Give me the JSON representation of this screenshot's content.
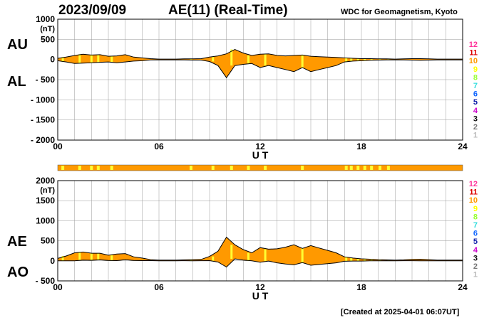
{
  "header": {
    "date": "2023/09/09",
    "title": "AE(11) (Real-Time)",
    "organization": "WDC for Geomagnetism, Kyoto"
  },
  "footer": {
    "created": "[Created at 2025-04-01 06:07UT]"
  },
  "colors": {
    "fill": "#ff9900",
    "highlight": "#ffff33",
    "line": "#000000",
    "grid": "#999999"
  },
  "station_scale": {
    "labels": [
      "12",
      "11",
      "10",
      "9",
      "8",
      "7",
      "6",
      "5",
      "4",
      "3",
      "2",
      "1"
    ],
    "colors": [
      "#ff3399",
      "#dd0000",
      "#ff9900",
      "#ffff00",
      "#99ff33",
      "#33dddd",
      "#1166ff",
      "#1122aa",
      "#cc00cc",
      "#111111",
      "#777777",
      "#bbbbbb"
    ]
  },
  "chart_data": [
    {
      "type": "area",
      "ylabel_top": "AU",
      "ylabel_bottom": "AL",
      "yunit": "(nT)",
      "xlabel": "U T",
      "xlim": [
        0,
        24
      ],
      "ylim": [
        -2000,
        1000
      ],
      "xticks": [
        "00",
        "06",
        "12",
        "18",
        "24"
      ],
      "xtick_values": [
        0,
        6,
        12,
        18,
        24
      ],
      "yticks": [
        "1000",
        "500",
        "0",
        "- 500",
        "- 1000",
        "- 1500",
        "- 2000"
      ],
      "ytick_values": [
        1000,
        500,
        0,
        -500,
        -1000,
        -1500,
        -2000
      ],
      "grid": true,
      "series": [
        {
          "name": "AU",
          "x": [
            0,
            0.5,
            1,
            1.5,
            2,
            2.5,
            3,
            3.5,
            4,
            4.5,
            5,
            5.5,
            6,
            6.5,
            7,
            7.5,
            8,
            8.5,
            9,
            9.5,
            10,
            10.5,
            11,
            11.5,
            12,
            12.5,
            13,
            13.5,
            14,
            14.5,
            15,
            15.5,
            16,
            16.5,
            17,
            17.5,
            18,
            18.5,
            19,
            19.5,
            20,
            20.5,
            21,
            21.5,
            22,
            22.5,
            23,
            23.5,
            24
          ],
          "values": [
            30,
            60,
            100,
            130,
            110,
            120,
            80,
            90,
            120,
            60,
            40,
            20,
            10,
            10,
            10,
            15,
            15,
            20,
            60,
            90,
            140,
            250,
            160,
            100,
            130,
            140,
            100,
            90,
            100,
            110,
            80,
            70,
            60,
            50,
            40,
            30,
            20,
            20,
            15,
            15,
            10,
            15,
            20,
            20,
            15,
            10,
            10,
            10,
            10
          ]
        },
        {
          "name": "AL",
          "x": [
            0,
            0.5,
            1,
            1.5,
            2,
            2.5,
            3,
            3.5,
            4,
            4.5,
            5,
            5.5,
            6,
            6.5,
            7,
            7.5,
            8,
            8.5,
            9,
            9.5,
            10,
            10.5,
            11,
            11.5,
            12,
            12.5,
            13,
            13.5,
            14,
            14.5,
            15,
            15.5,
            16,
            16.5,
            17,
            17.5,
            18,
            18.5,
            19,
            19.5,
            20,
            20.5,
            21,
            21.5,
            22,
            22.5,
            23,
            23.5,
            24
          ],
          "values": [
            -30,
            -60,
            -100,
            -90,
            -80,
            -70,
            -60,
            -80,
            -60,
            -40,
            -30,
            -10,
            -10,
            -10,
            -10,
            -10,
            -15,
            -15,
            -50,
            -150,
            -450,
            -150,
            -120,
            -100,
            -200,
            -150,
            -200,
            -250,
            -300,
            -200,
            -300,
            -250,
            -200,
            -150,
            -60,
            -40,
            -30,
            -20,
            -15,
            -10,
            -10,
            -10,
            -15,
            -20,
            -15,
            -10,
            -10,
            -10,
            -10
          ]
        }
      ]
    },
    {
      "type": "bar",
      "description_colors": "station count indicator",
      "xlim": [
        0,
        24
      ],
      "highlight_x": [
        0.3,
        1.3,
        2.0,
        2.4,
        3.2,
        7.9,
        9.2,
        10.3,
        11.3,
        12.3,
        14.5,
        17.1,
        17.4,
        17.8,
        18.2,
        18.6,
        19.1,
        19.6
      ]
    },
    {
      "type": "area",
      "ylabel_top": "AE",
      "ylabel_bottom": "AO",
      "yunit": "(nT)",
      "xlabel": "U T",
      "xlim": [
        0,
        24
      ],
      "ylim": [
        -500,
        2000
      ],
      "xticks": [
        "00",
        "06",
        "12",
        "18",
        "24"
      ],
      "xtick_values": [
        0,
        6,
        12,
        18,
        24
      ],
      "yticks": [
        "2000",
        "1500",
        "1000",
        "500",
        "0",
        "- 500"
      ],
      "ytick_values": [
        2000,
        1500,
        1000,
        500,
        0,
        -500
      ],
      "grid": true,
      "series": [
        {
          "name": "AE",
          "x": [
            0,
            0.5,
            1,
            1.5,
            2,
            2.5,
            3,
            3.5,
            4,
            4.5,
            5,
            5.5,
            6,
            6.5,
            7,
            7.5,
            8,
            8.5,
            9,
            9.5,
            10,
            10.5,
            11,
            11.5,
            12,
            12.5,
            13,
            13.5,
            14,
            14.5,
            15,
            15.5,
            16,
            16.5,
            17,
            17.5,
            18,
            18.5,
            19,
            19.5,
            20,
            20.5,
            21,
            21.5,
            22,
            22.5,
            23,
            23.5,
            24
          ],
          "values": [
            60,
            120,
            200,
            220,
            190,
            190,
            140,
            170,
            180,
            100,
            70,
            30,
            20,
            20,
            20,
            25,
            30,
            35,
            110,
            240,
            590,
            400,
            280,
            200,
            330,
            290,
            300,
            340,
            400,
            310,
            380,
            320,
            260,
            200,
            100,
            70,
            50,
            40,
            30,
            25,
            20,
            25,
            35,
            40,
            30,
            20,
            20,
            20,
            20
          ]
        },
        {
          "name": "AO",
          "x": [
            0,
            0.5,
            1,
            1.5,
            2,
            2.5,
            3,
            3.5,
            4,
            4.5,
            5,
            5.5,
            6,
            6.5,
            7,
            7.5,
            8,
            8.5,
            9,
            9.5,
            10,
            10.5,
            11,
            11.5,
            12,
            12.5,
            13,
            13.5,
            14,
            14.5,
            15,
            15.5,
            16,
            16.5,
            17,
            17.5,
            18,
            18.5,
            19,
            19.5,
            20,
            20.5,
            21,
            21.5,
            22,
            22.5,
            23,
            23.5,
            24
          ],
          "values": [
            0,
            0,
            0,
            20,
            15,
            25,
            10,
            5,
            30,
            10,
            5,
            5,
            0,
            0,
            0,
            3,
            0,
            3,
            5,
            -30,
            -155,
            50,
            20,
            0,
            -35,
            -5,
            -50,
            -80,
            -100,
            -45,
            -110,
            -90,
            -70,
            -50,
            -10,
            -5,
            -5,
            0,
            0,
            3,
            0,
            3,
            3,
            0,
            0,
            0,
            0,
            0,
            0
          ]
        }
      ]
    }
  ]
}
